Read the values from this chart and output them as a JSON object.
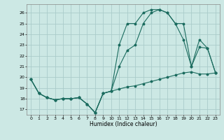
{
  "xlabel": "Humidex (Indice chaleur)",
  "background_color": "#cce8e4",
  "grid_color": "#aaccca",
  "line_color": "#1a6b5e",
  "xlim": [
    -0.5,
    23.5
  ],
  "ylim": [
    16.5,
    26.8
  ],
  "yticks": [
    17,
    18,
    19,
    20,
    21,
    22,
    23,
    24,
    25,
    26
  ],
  "xticks": [
    0,
    1,
    2,
    3,
    4,
    5,
    6,
    7,
    8,
    9,
    10,
    11,
    12,
    13,
    14,
    15,
    16,
    17,
    18,
    19,
    20,
    21,
    22,
    23
  ],
  "series": [
    {
      "x": [
        0,
        1,
        2,
        3,
        4,
        5,
        6,
        7,
        8,
        9,
        10,
        11,
        12,
        13,
        14,
        15,
        16,
        17,
        18,
        19,
        20,
        21,
        22,
        23
      ],
      "y": [
        19.8,
        18.5,
        18.1,
        17.9,
        18.0,
        18.0,
        18.1,
        17.5,
        16.7,
        18.5,
        18.7,
        23.0,
        25.0,
        25.0,
        26.0,
        26.3,
        26.3,
        26.0,
        25.0,
        23.5,
        21.0,
        22.8,
        22.7,
        20.4
      ]
    },
    {
      "x": [
        0,
        1,
        2,
        3,
        4,
        5,
        6,
        7,
        8,
        9,
        10,
        11,
        12,
        13,
        14,
        15,
        16,
        17,
        18,
        19,
        20,
        21,
        22,
        23
      ],
      "y": [
        19.8,
        18.5,
        18.1,
        17.9,
        18.0,
        18.0,
        18.1,
        17.5,
        16.7,
        18.5,
        18.7,
        21.0,
        22.5,
        23.0,
        25.0,
        26.0,
        26.3,
        26.0,
        25.0,
        25.0,
        21.0,
        23.5,
        22.7,
        20.4
      ]
    },
    {
      "x": [
        0,
        1,
        2,
        3,
        4,
        5,
        6,
        7,
        8,
        9,
        10,
        11,
        12,
        13,
        14,
        15,
        16,
        17,
        18,
        19,
        20,
        21,
        22,
        23
      ],
      "y": [
        19.8,
        18.5,
        18.1,
        17.9,
        18.0,
        18.0,
        18.1,
        17.5,
        16.7,
        18.5,
        18.7,
        18.9,
        19.1,
        19.2,
        19.4,
        19.6,
        19.8,
        20.0,
        20.2,
        20.4,
        20.5,
        20.3,
        20.3,
        20.4
      ]
    }
  ]
}
